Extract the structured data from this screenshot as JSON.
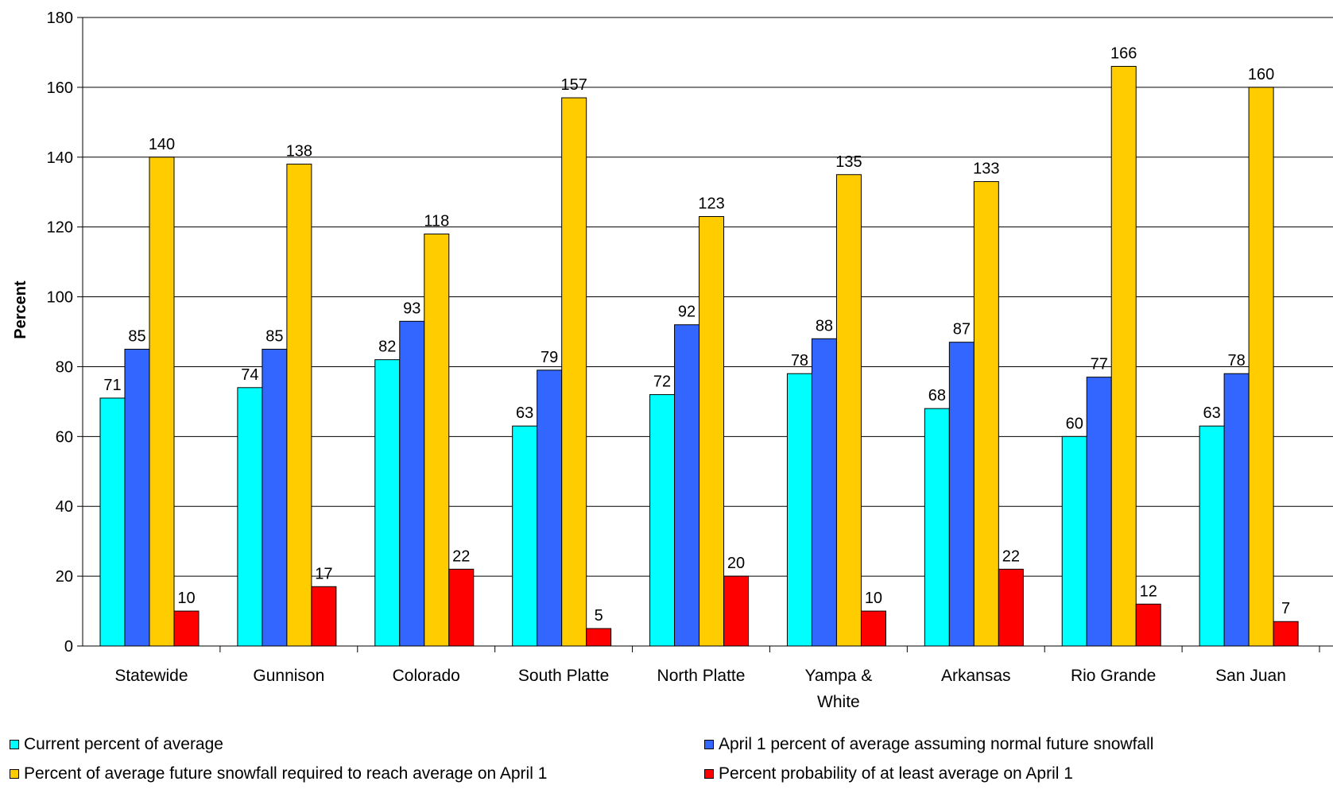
{
  "chart_data": {
    "type": "bar",
    "title": "",
    "xlabel": "",
    "ylabel": "Percent",
    "ylim": [
      0,
      180
    ],
    "yticks": [
      "0",
      "20",
      "40",
      "60",
      "80",
      "100",
      "120",
      "140",
      "160",
      "180"
    ],
    "grid": "horizontal",
    "legend_position": "bottom",
    "categories": [
      [
        "Statewide"
      ],
      [
        "Gunnison"
      ],
      [
        "Colorado"
      ],
      [
        "South Platte"
      ],
      [
        "North Platte"
      ],
      [
        "Yampa &",
        "White"
      ],
      [
        "Arkansas"
      ],
      [
        "Rio Grande"
      ],
      [
        "San Juan"
      ]
    ],
    "series": [
      {
        "name": "Current percent of average",
        "color": "#00FFFF",
        "values": [
          71,
          74,
          82,
          63,
          72,
          78,
          68,
          60,
          63
        ]
      },
      {
        "name": "April 1 percent of average assuming normal future snowfall",
        "color": "#3366FF",
        "values": [
          85,
          85,
          93,
          79,
          92,
          88,
          87,
          77,
          78
        ]
      },
      {
        "name": "Percent of average future snowfall required to reach average on April 1",
        "color": "#FFCC00",
        "values": [
          140,
          138,
          118,
          157,
          123,
          135,
          133,
          166,
          160
        ]
      },
      {
        "name": "Percent probability of at least average on April 1",
        "color": "#FF0000",
        "values": [
          10,
          17,
          22,
          5,
          20,
          10,
          22,
          12,
          7
        ]
      }
    ]
  }
}
